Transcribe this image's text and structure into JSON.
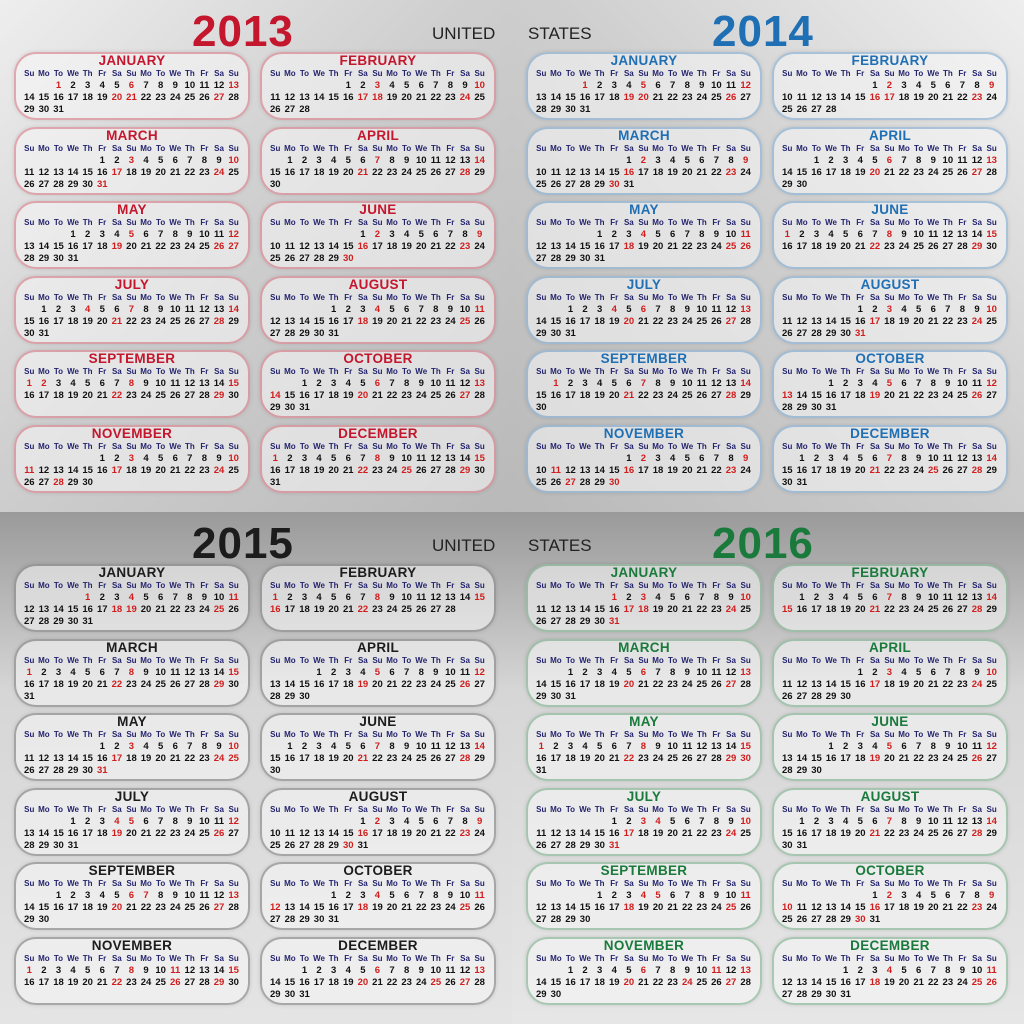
{
  "header": {
    "country_left": "UNITED",
    "country_right": "STATES"
  },
  "weekday_labels": [
    "Su",
    "Mo",
    "To",
    "We",
    "Th",
    "Fr",
    "Sa",
    "Su",
    "Mo",
    "To",
    "We",
    "Th",
    "Fr",
    "Sa",
    "Su"
  ],
  "years": [
    {
      "year": "2013",
      "color": "#c4162d",
      "months": [
        {
          "name": "JANUARY",
          "start": 2,
          "days": 31,
          "holidays": [
            1,
            21
          ]
        },
        {
          "name": "FEBRUARY",
          "start": 5,
          "days": 28,
          "holidays": [
            18
          ]
        },
        {
          "name": "MARCH",
          "start": 5,
          "days": 31,
          "holidays": []
        },
        {
          "name": "APRIL",
          "start": 1,
          "days": 30,
          "holidays": []
        },
        {
          "name": "MAY",
          "start": 3,
          "days": 31,
          "holidays": [
            27
          ]
        },
        {
          "name": "JUNE",
          "start": 6,
          "days": 30,
          "holidays": []
        },
        {
          "name": "JULY",
          "start": 1,
          "days": 31,
          "holidays": [
            4
          ]
        },
        {
          "name": "AUGUST",
          "start": 4,
          "days": 31,
          "holidays": []
        },
        {
          "name": "SEPTEMBER",
          "start": 0,
          "days": 30,
          "holidays": [
            2
          ]
        },
        {
          "name": "OCTOBER",
          "start": 2,
          "days": 31,
          "holidays": [
            14
          ]
        },
        {
          "name": "NOVEMBER",
          "start": 5,
          "days": 30,
          "holidays": [
            11,
            28
          ]
        },
        {
          "name": "DECEMBER",
          "start": 0,
          "days": 31,
          "holidays": [
            25
          ]
        }
      ]
    },
    {
      "year": "2014",
      "color": "#1f6fb5",
      "months": [
        {
          "name": "JANUARY",
          "start": 3,
          "days": 31,
          "holidays": [
            1,
            20
          ]
        },
        {
          "name": "FEBRUARY",
          "start": 6,
          "days": 28,
          "holidays": [
            17
          ]
        },
        {
          "name": "MARCH",
          "start": 6,
          "days": 31,
          "holidays": []
        },
        {
          "name": "APRIL",
          "start": 2,
          "days": 30,
          "holidays": []
        },
        {
          "name": "MAY",
          "start": 4,
          "days": 31,
          "holidays": [
            26
          ]
        },
        {
          "name": "JUNE",
          "start": 0,
          "days": 30,
          "holidays": []
        },
        {
          "name": "JULY",
          "start": 2,
          "days": 31,
          "holidays": [
            4
          ]
        },
        {
          "name": "AUGUST",
          "start": 5,
          "days": 31,
          "holidays": []
        },
        {
          "name": "SEPTEMBER",
          "start": 1,
          "days": 30,
          "holidays": [
            1
          ]
        },
        {
          "name": "OCTOBER",
          "start": 3,
          "days": 31,
          "holidays": [
            13
          ]
        },
        {
          "name": "NOVEMBER",
          "start": 6,
          "days": 30,
          "holidays": [
            11,
            27
          ]
        },
        {
          "name": "DECEMBER",
          "start": 1,
          "days": 31,
          "holidays": [
            25
          ]
        }
      ]
    },
    {
      "year": "2015",
      "color": "#1c1c1c",
      "months": [
        {
          "name": "JANUARY",
          "start": 4,
          "days": 31,
          "holidays": [
            1,
            19
          ]
        },
        {
          "name": "FEBRUARY",
          "start": 0,
          "days": 28,
          "holidays": [
            16
          ]
        },
        {
          "name": "MARCH",
          "start": 0,
          "days": 31,
          "holidays": []
        },
        {
          "name": "APRIL",
          "start": 3,
          "days": 30,
          "holidays": []
        },
        {
          "name": "MAY",
          "start": 5,
          "days": 31,
          "holidays": [
            25
          ]
        },
        {
          "name": "JUNE",
          "start": 1,
          "days": 30,
          "holidays": []
        },
        {
          "name": "JULY",
          "start": 3,
          "days": 31,
          "holidays": [
            4
          ]
        },
        {
          "name": "AUGUST",
          "start": 6,
          "days": 31,
          "holidays": []
        },
        {
          "name": "SEPTEMBER",
          "start": 2,
          "days": 30,
          "holidays": [
            7
          ]
        },
        {
          "name": "OCTOBER",
          "start": 4,
          "days": 31,
          "holidays": [
            12
          ]
        },
        {
          "name": "NOVEMBER",
          "start": 0,
          "days": 30,
          "holidays": [
            11,
            26
          ]
        },
        {
          "name": "DECEMBER",
          "start": 2,
          "days": 31,
          "holidays": [
            25
          ]
        }
      ]
    },
    {
      "year": "2016",
      "color": "#1a7a3c",
      "months": [
        {
          "name": "JANUARY",
          "start": 5,
          "days": 31,
          "holidays": [
            1,
            18
          ]
        },
        {
          "name": "FEBRUARY",
          "start": 1,
          "days": 29,
          "holidays": [
            15
          ]
        },
        {
          "name": "MARCH",
          "start": 2,
          "days": 31,
          "holidays": []
        },
        {
          "name": "APRIL",
          "start": 5,
          "days": 30,
          "holidays": []
        },
        {
          "name": "MAY",
          "start": 0,
          "days": 31,
          "holidays": [
            30
          ]
        },
        {
          "name": "JUNE",
          "start": 3,
          "days": 30,
          "holidays": []
        },
        {
          "name": "JULY",
          "start": 5,
          "days": 31,
          "holidays": [
            4
          ]
        },
        {
          "name": "AUGUST",
          "start": 1,
          "days": 31,
          "holidays": []
        },
        {
          "name": "SEPTEMBER",
          "start": 4,
          "days": 30,
          "holidays": [
            5
          ]
        },
        {
          "name": "OCTOBER",
          "start": 6,
          "days": 31,
          "holidays": [
            10
          ]
        },
        {
          "name": "NOVEMBER",
          "start": 2,
          "days": 30,
          "holidays": [
            11,
            24
          ]
        },
        {
          "name": "DECEMBER",
          "start": 4,
          "days": 31,
          "holidays": [
            26
          ]
        }
      ]
    }
  ]
}
